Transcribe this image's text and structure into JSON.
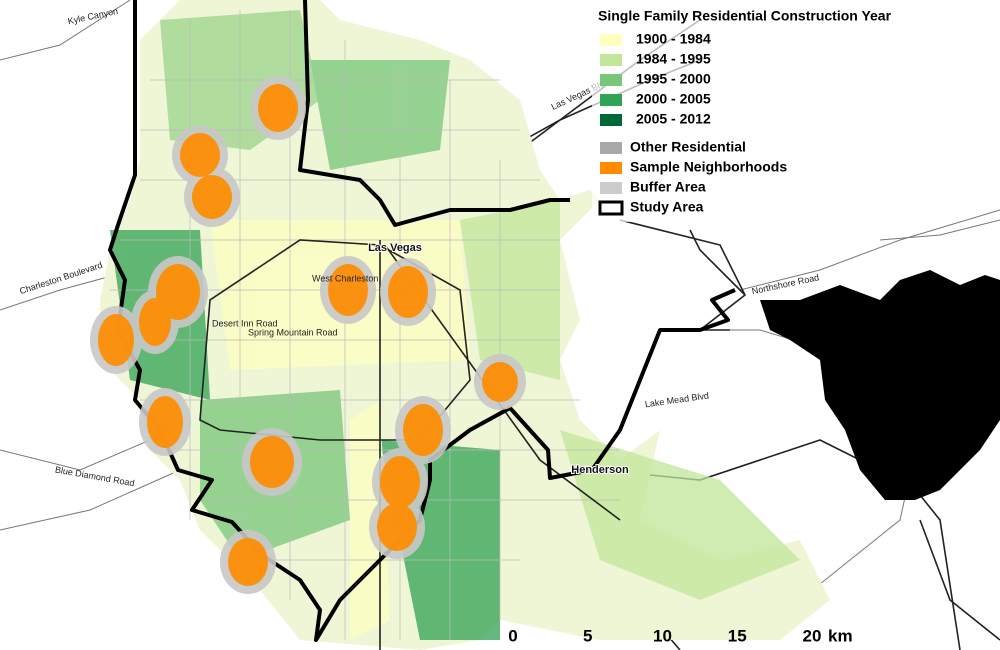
{
  "legend": {
    "title": "Single Family Residential Construction Year",
    "year_classes": [
      {
        "label": "1900 - 1984",
        "color": "#ffffc0"
      },
      {
        "label": "1984 - 1995",
        "color": "#c2e699"
      },
      {
        "label": "1995 - 2000",
        "color": "#78c679"
      },
      {
        "label": "2000 - 2005",
        "color": "#31a354"
      },
      {
        "label": "2005 - 2012",
        "color": "#006837"
      }
    ],
    "other_items": [
      {
        "label": "Other Residential",
        "color": "#a9a9a9"
      },
      {
        "label": "Sample Neighborhoods",
        "color": "#ff8c00"
      },
      {
        "label": "Buffer Area",
        "color": "#cccccc"
      },
      {
        "label": "Study Area",
        "color": "#ffffff"
      }
    ]
  },
  "scale_bar": {
    "ticks": [
      0,
      5,
      10,
      15,
      20
    ],
    "unit": "km"
  },
  "places": {
    "las_vegas": "Las Vegas",
    "henderson": "Henderson",
    "charleston": "Charleston Boulevard",
    "blue_diamond": "Blue Diamond Road",
    "las_vegas_blvd": "Las Vegas Blvd",
    "northshore": "Northshore Road",
    "kyle_canyon": "Kyle Canyon",
    "lake_mead": "Lake Mead Blvd",
    "west_charleston": "West Charleston",
    "spring_mountain": "Spring Mountain Road",
    "desert_inn": "Desert Inn Road"
  }
}
